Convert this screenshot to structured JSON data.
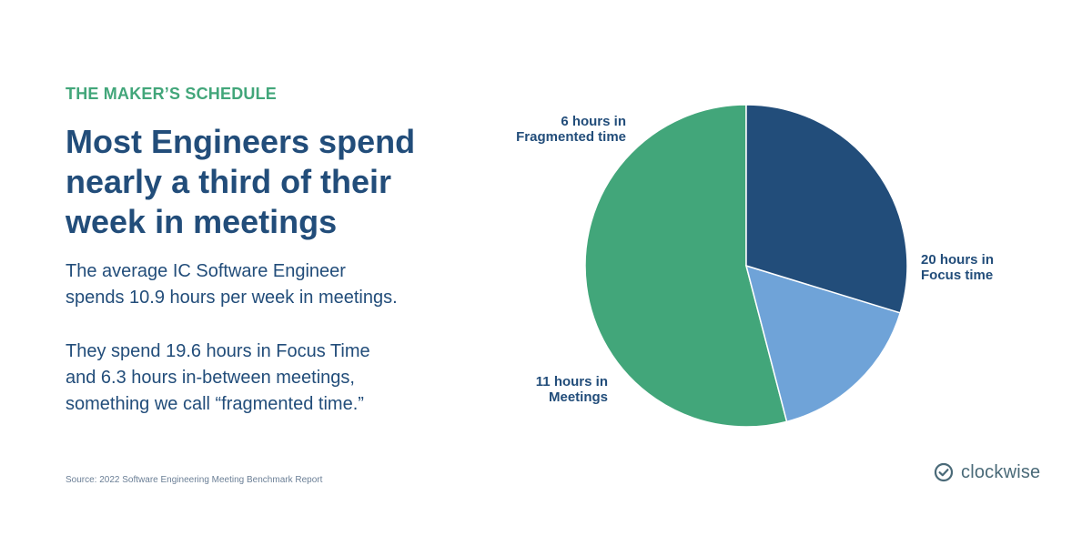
{
  "slide": {
    "eyebrow": "THE MAKER’S SCHEDULE",
    "headline_lines": [
      "Most Engineers spend",
      "nearly a third of their",
      "week in meetings"
    ],
    "body_1_lines": [
      "The average IC Software Engineer",
      "spends 10.9 hours per week in meetings."
    ],
    "body_2_lines": [
      "They spend 19.6 hours in Focus Time",
      "and 6.3 hours in-between meetings,",
      "something we call “fragmented time.”"
    ],
    "source": "Source: 2022 Software Engineering Meeting Benchmark Report"
  },
  "brand": {
    "name": "clockwise",
    "icon": "check-circle-icon",
    "color": "#4a6a78"
  },
  "colors": {
    "accent": "#42a67a",
    "title": "#224d7a"
  },
  "chart_data": {
    "type": "pie",
    "title": "",
    "start_angle_deg": 0,
    "direction": "counterclockwise",
    "slices": [
      {
        "label_lines": [
          "20 hours in",
          "Focus time"
        ],
        "value": 20,
        "color": "#42a67a"
      },
      {
        "label_lines": [
          "6 hours in",
          "Fragmented time"
        ],
        "value": 6,
        "color": "#6fa3d8"
      },
      {
        "label_lines": [
          "11 hours in",
          "Meetings"
        ],
        "value": 11,
        "color": "#224d7a"
      }
    ],
    "legend": "none"
  }
}
